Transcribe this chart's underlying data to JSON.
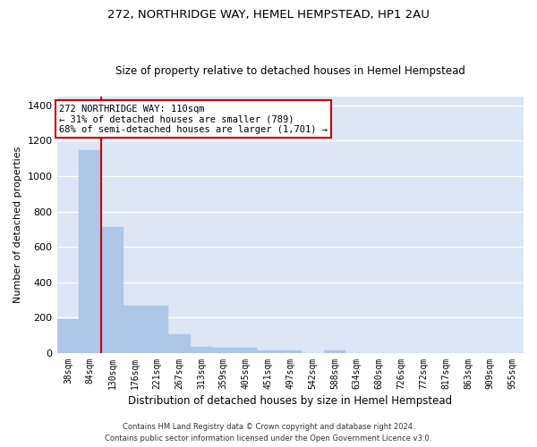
{
  "title": "272, NORTHRIDGE WAY, HEMEL HEMPSTEAD, HP1 2AU",
  "subtitle": "Size of property relative to detached houses in Hemel Hempstead",
  "xlabel": "Distribution of detached houses by size in Hemel Hempstead",
  "ylabel": "Number of detached properties",
  "categories": [
    "38sqm",
    "84sqm",
    "130sqm",
    "176sqm",
    "221sqm",
    "267sqm",
    "313sqm",
    "359sqm",
    "405sqm",
    "451sqm",
    "497sqm",
    "542sqm",
    "588sqm",
    "634sqm",
    "680sqm",
    "726sqm",
    "772sqm",
    "817sqm",
    "863sqm",
    "909sqm",
    "955sqm"
  ],
  "values": [
    193,
    1145,
    714,
    268,
    268,
    108,
    35,
    28,
    28,
    14,
    14,
    0,
    14,
    0,
    0,
    0,
    0,
    0,
    0,
    0,
    0
  ],
  "bar_color": "#aec6e8",
  "bar_edge_color": "#aec6e8",
  "vline_color": "#cc0000",
  "annotation_line1": "272 NORTHRIDGE WAY: 110sqm",
  "annotation_line2": "← 31% of detached houses are smaller (789)",
  "annotation_line3": "68% of semi-detached houses are larger (1,701) →",
  "annotation_box_facecolor": "#ffffff",
  "annotation_box_edgecolor": "#cc0000",
  "ylim": [
    0,
    1450
  ],
  "yticks": [
    0,
    200,
    400,
    600,
    800,
    1000,
    1200,
    1400
  ],
  "background_color": "#dce6f5",
  "grid_color": "#ffffff",
  "footer_line1": "Contains HM Land Registry data © Crown copyright and database right 2024.",
  "footer_line2": "Contains public sector information licensed under the Open Government Licence v3.0.",
  "title_fontsize": 9.5,
  "subtitle_fontsize": 8.5,
  "annotation_fontsize": 7.5,
  "ylabel_fontsize": 8,
  "xlabel_fontsize": 8.5,
  "ytick_fontsize": 8,
  "xtick_fontsize": 7
}
